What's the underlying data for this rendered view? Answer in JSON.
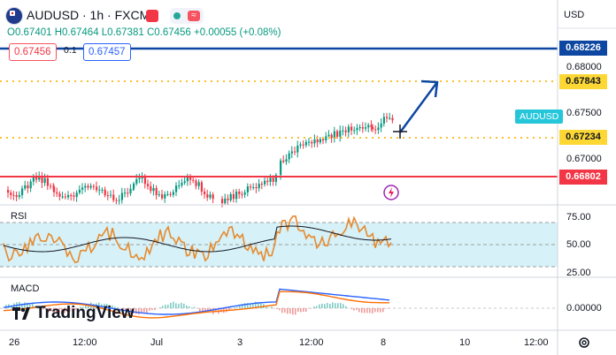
{
  "header": {
    "symbol": "AUDUSD · 1h · FXCM",
    "ohlc": "O0.67401 H0.67464 L0.67381 C0.67456 +0.00055 (+0.08%)",
    "sell_price": "0.67456",
    "spread": "0.1",
    "buy_price": "0.67457"
  },
  "currency_button": "USD",
  "y_axis": {
    "ticks": [
      "0.68000",
      "0.67500",
      "0.67000"
    ],
    "tags": [
      {
        "label": "0.68226",
        "bg": "#0d47a1",
        "fg": "#ffffff"
      },
      {
        "label": "0.67843",
        "bg": "#fdd835",
        "fg": "#131722"
      },
      {
        "label": "0.67234",
        "bg": "#fdd835",
        "fg": "#131722"
      },
      {
        "label": "0.66802",
        "bg": "#f23645",
        "fg": "#ffffff"
      }
    ]
  },
  "series_label": "AUDUSD",
  "rsi": {
    "title": "RSI",
    "ticks": [
      "75.00",
      "50.00",
      "25.00"
    ]
  },
  "macd": {
    "title": "MACD",
    "ticks": [
      "0.00000"
    ]
  },
  "x_axis": {
    "ticks": [
      "26",
      "12:00",
      "Jul",
      "3",
      "12:00",
      "8",
      "10",
      "12:00"
    ]
  },
  "branding": {
    "name": "TradingView"
  },
  "icons": {
    "settings": "gear-icon",
    "crosshair": "crosshair-icon",
    "alert": "lightning-icon"
  },
  "colors": {
    "up": "#089981",
    "down": "#f23645",
    "resistance_line": "#0d47a1",
    "level_line": "#fbc02d",
    "support_line": "#f23645",
    "arrow": "#0d47a1",
    "rsi_line": "#e68a2e",
    "rsi_ma": "#131722",
    "rsi_band": "#d6f1f7"
  }
}
